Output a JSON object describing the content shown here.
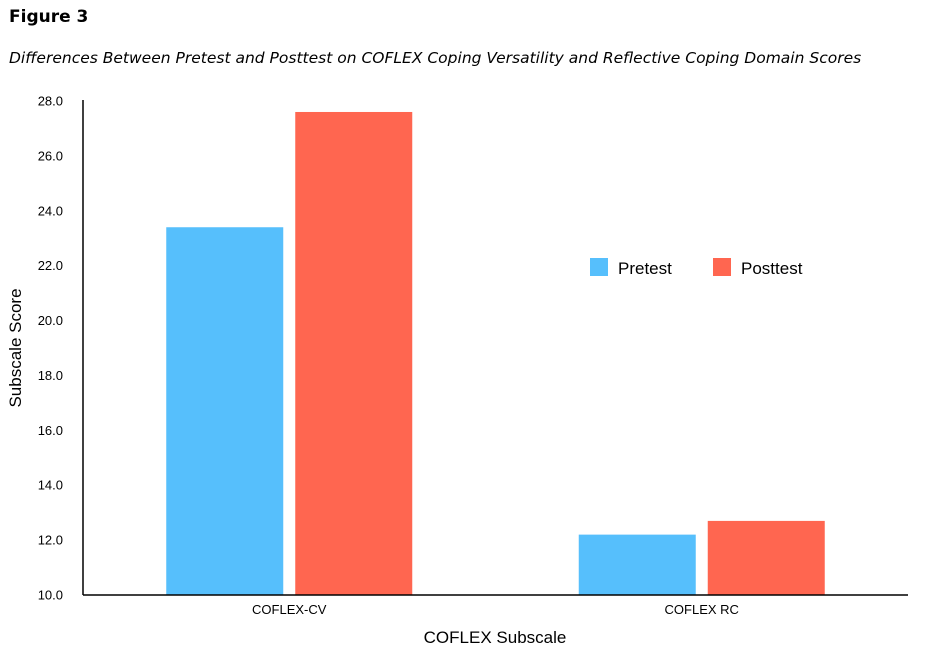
{
  "figure": {
    "label": "Figure 3",
    "title": "Differences Between Pretest and Posttest on COFLEX Coping Versatility and Reflective Coping Domain Scores"
  },
  "chart_data": {
    "type": "bar",
    "categories": [
      "COFLEX-CV",
      "COFLEX RC"
    ],
    "series": [
      {
        "name": "Pretest",
        "color": "#56BFFC",
        "values": [
          23.4,
          12.2
        ]
      },
      {
        "name": "Posttest",
        "color": "#FF6650",
        "values": [
          27.6,
          12.7
        ]
      }
    ],
    "xlabel": "COFLEX Subscale",
    "ylabel": "Subscale Score",
    "ylim": [
      10.0,
      28.0
    ],
    "yticks": [
      "10.0",
      "12.0",
      "14.0",
      "16.0",
      "18.0",
      "20.0",
      "22.0",
      "24.0",
      "26.0",
      "28.0"
    ],
    "grid": false,
    "legend_position": "right-middle"
  }
}
